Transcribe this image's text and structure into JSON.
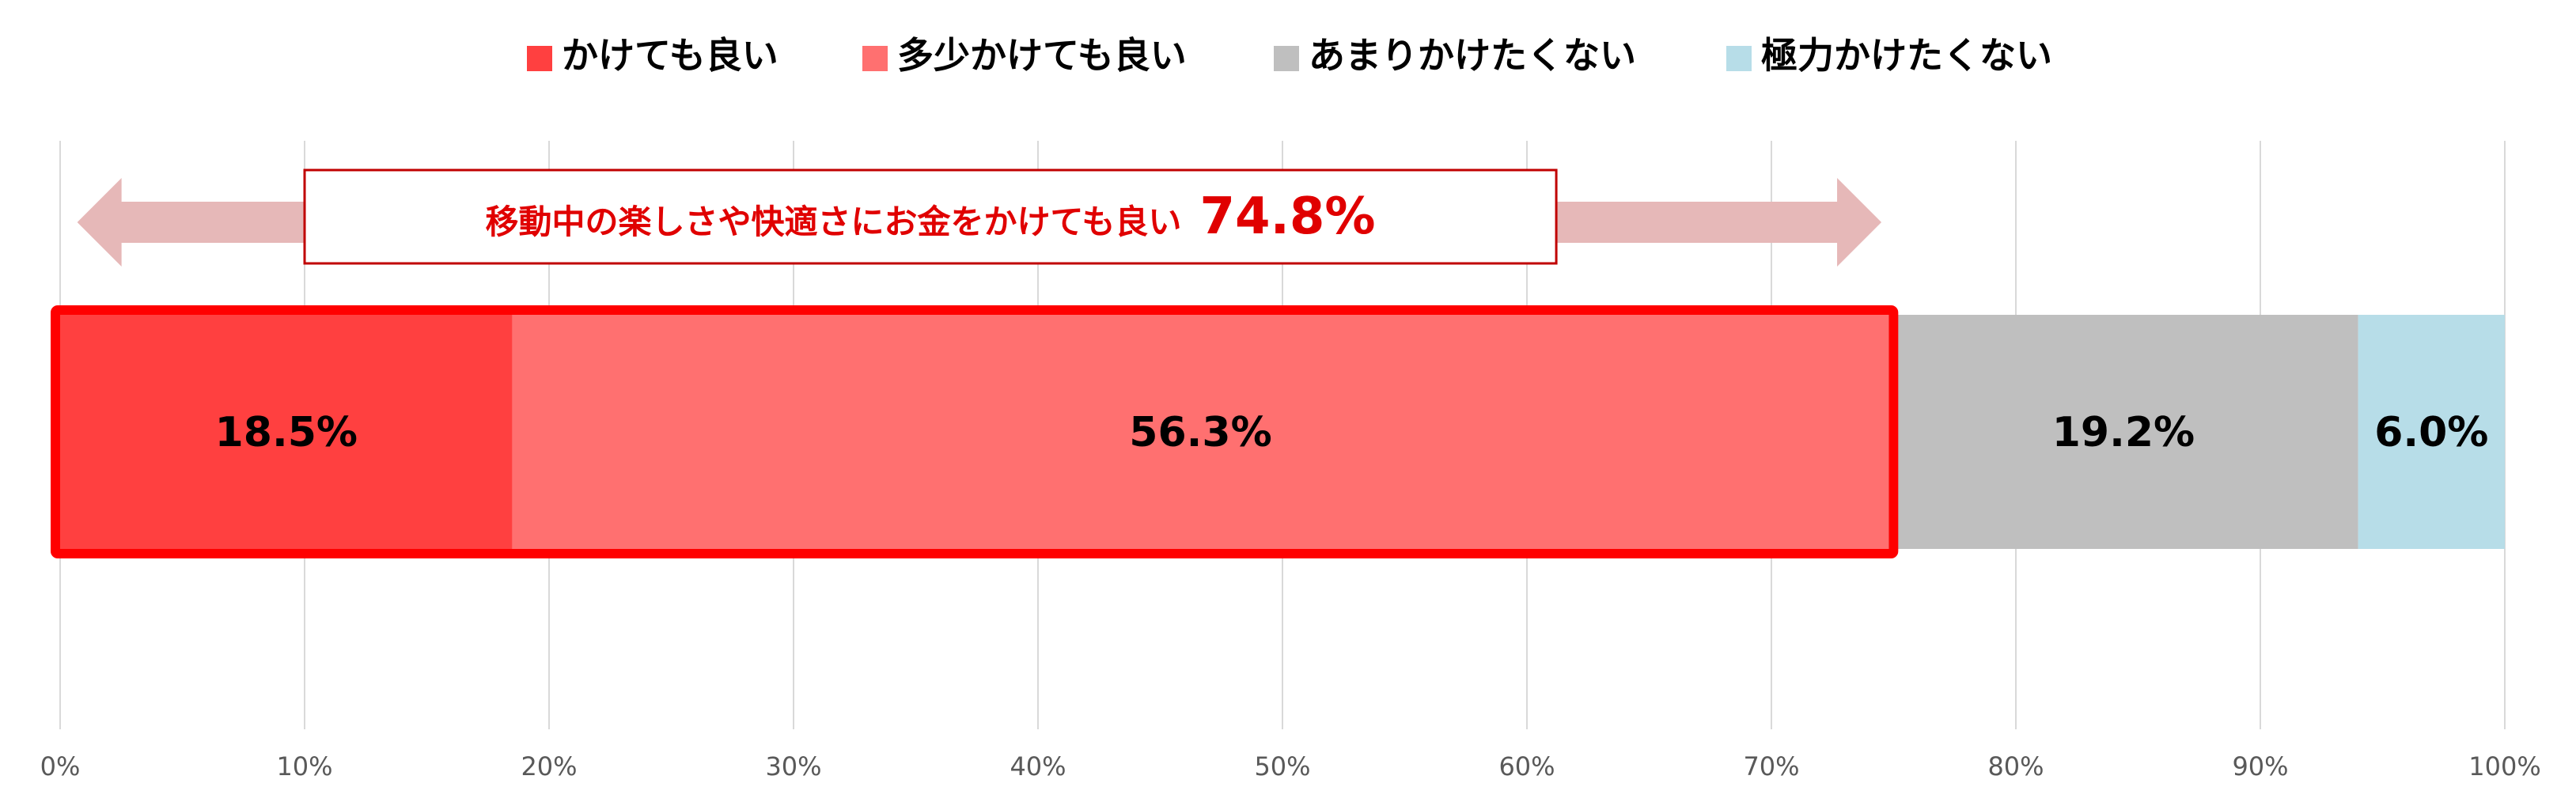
{
  "chart_data": {
    "type": "bar",
    "orientation": "horizontal",
    "stacked": true,
    "series": [
      {
        "name": "かけても良い",
        "value": 18.5,
        "label": "18.5%",
        "color": "#ff4040"
      },
      {
        "name": "多少かけても良い",
        "value": 56.3,
        "label": "56.3%",
        "color": "#ff7070"
      },
      {
        "name": "あまりかけたくない",
        "value": 19.2,
        "label": "19.2%",
        "color": "#bfbfbf"
      },
      {
        "name": "極力かけたくない",
        "value": 6.0,
        "label": "6.0%",
        "color": "#b7dde8"
      }
    ],
    "xlim": [
      0,
      100
    ],
    "x_ticks": [
      "0%",
      "10%",
      "20%",
      "30%",
      "40%",
      "50%",
      "60%",
      "70%",
      "80%",
      "90%",
      "100%"
    ],
    "grid": true,
    "legend_position": "top",
    "annotation": {
      "text": "移動中の楽しさや快適さにお金をかけても良い",
      "value_label": "74.8%",
      "value": 74.8,
      "highlight_color": "#ff0000",
      "arrow_color": "#e6b8b8"
    }
  }
}
